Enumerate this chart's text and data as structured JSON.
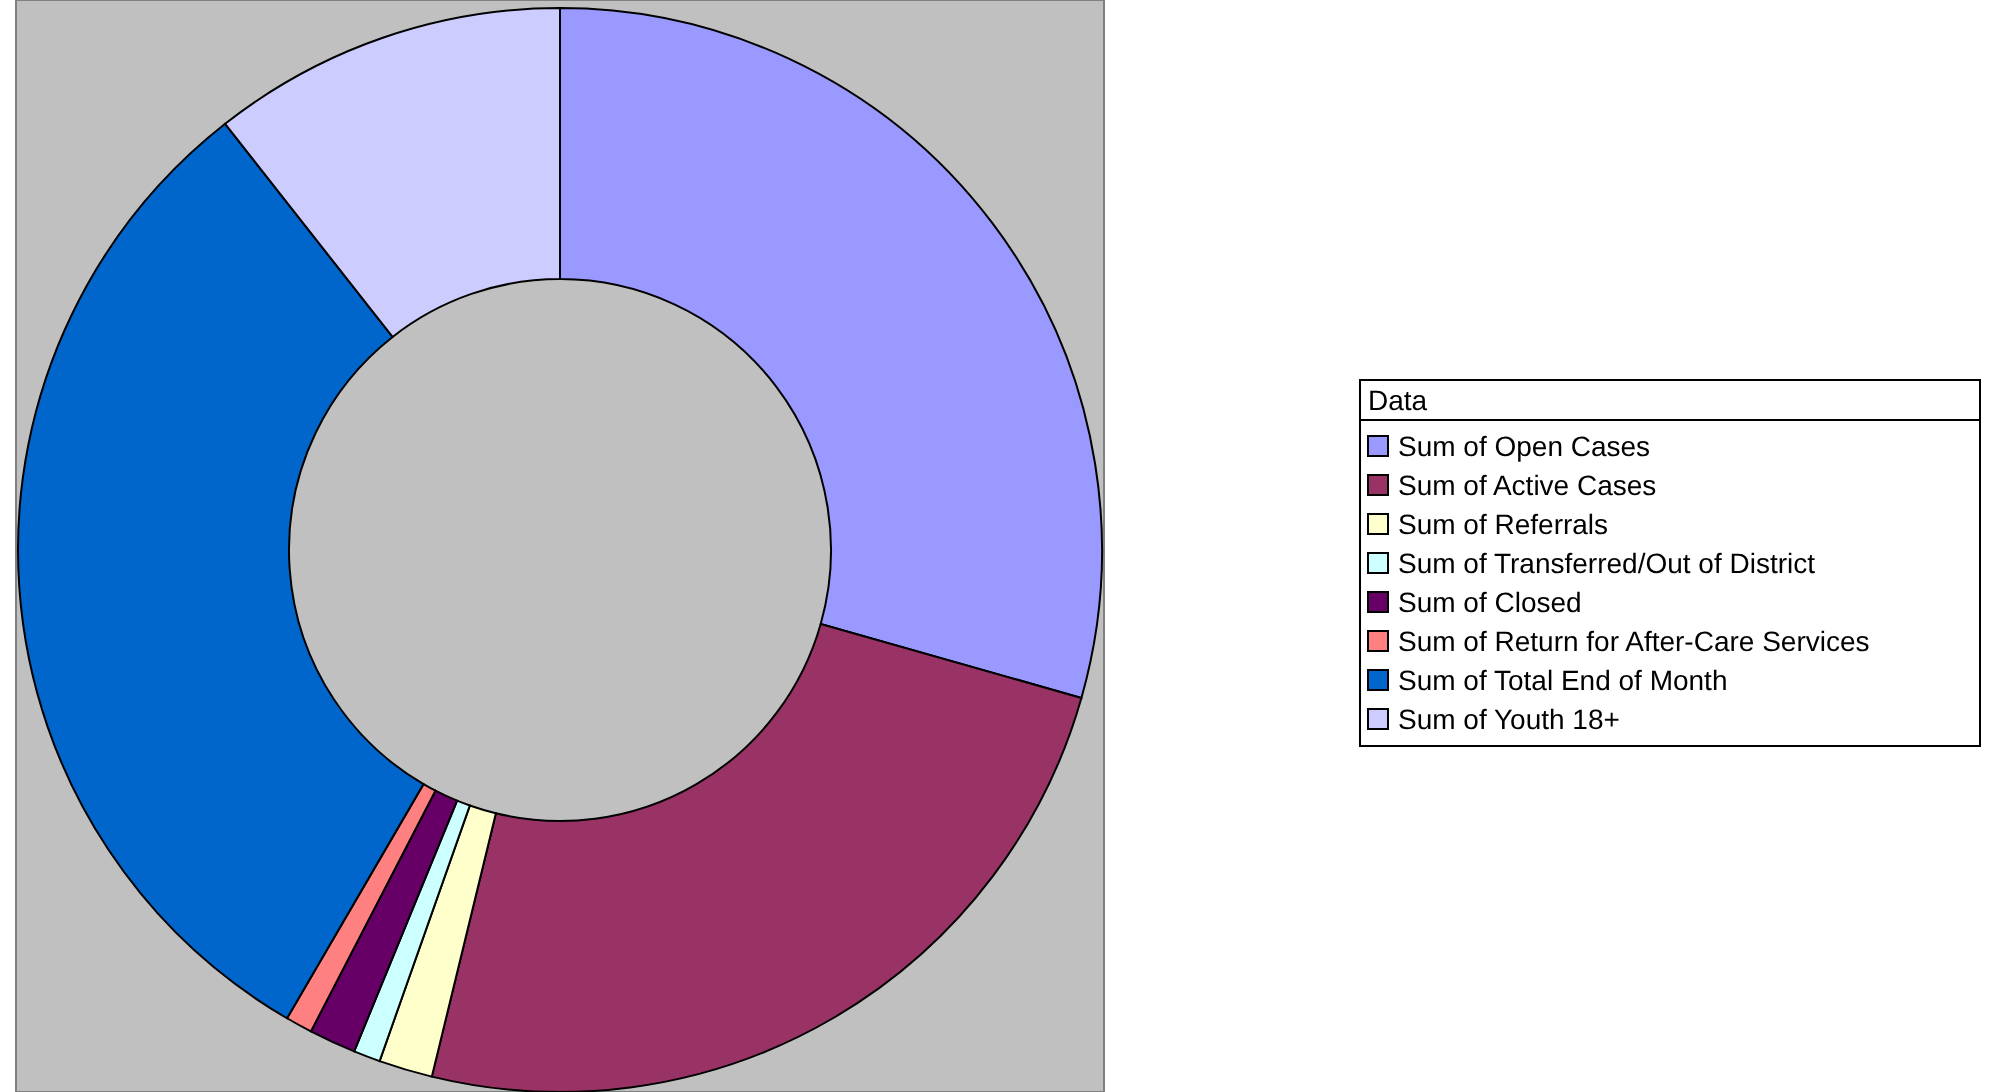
{
  "chart_data": {
    "type": "donut",
    "legend_title": "Data",
    "legend": "right",
    "categories": [
      "Sum of Open Cases",
      "Sum of Active Cases",
      "Sum of Referrals",
      "Sum of Transferred/Out of District",
      "Sum of Closed",
      "Sum of Return for After-Care Services",
      "Sum of Total End of Month",
      "Sum of Youth 18+"
    ],
    "values": [
      29.4,
      24.4,
      1.6,
      0.8,
      1.4,
      0.8,
      31.0,
      10.6
    ],
    "colors": [
      "#9999ff",
      "#993366",
      "#ffffcc",
      "#ccffff",
      "#660066",
      "#ff8080",
      "#0066cc",
      "#ccccff"
    ]
  }
}
